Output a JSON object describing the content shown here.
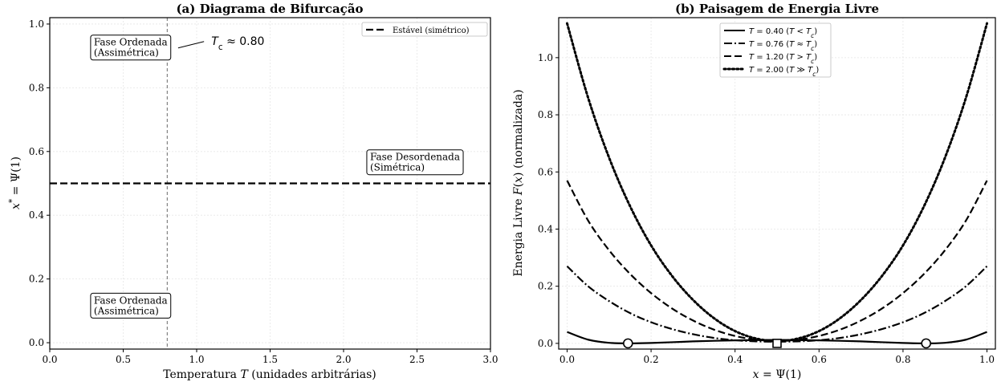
{
  "chart_data": [
    {
      "type": "line",
      "title": "(a) Diagrama de Bifurcação",
      "xlabel": "Temperatura T (unidades arbitrárias)",
      "ylabel": "x* = Ψ(1)",
      "xlim": [
        0,
        3
      ],
      "ylim": [
        -0.02,
        1.02
      ],
      "xticks": [
        "0.0",
        "0.5",
        "1.0",
        "1.5",
        "2.0",
        "2.5",
        "3.0"
      ],
      "yticks": [
        "0.0",
        "0.2",
        "0.4",
        "0.6",
        "0.8",
        "1.0"
      ],
      "grid": true,
      "legend_position": "top-right",
      "series": [
        {
          "name": "Estável (simétrico)",
          "style": "dashed",
          "x": [
            0,
            3
          ],
          "y": [
            0.5,
            0.5
          ]
        }
      ],
      "vline": {
        "x": 0.8,
        "label": "T_c ≈ 0.80"
      },
      "annotations": [
        {
          "line1": "Fase Ordenada",
          "line2": "(Assimétrica)",
          "x": 0.3,
          "y": 0.93
        },
        {
          "line1": "Fase Desordenada",
          "line2": "(Simétrica)",
          "x": 2.18,
          "y": 0.57
        },
        {
          "line1": "Fase Ordenada",
          "line2": "(Assimétrica)",
          "x": 0.3,
          "y": 0.12
        }
      ]
    },
    {
      "type": "line",
      "title": "(b) Paisagem de Energia Livre",
      "xlabel": "x = Ψ(1)",
      "ylabel": "Energia Livre F(x) (normalizada)",
      "xlim": [
        -0.02,
        1.02
      ],
      "ylim": [
        -0.02,
        1.14
      ],
      "xticks": [
        "0.0",
        "0.2",
        "0.4",
        "0.6",
        "0.8",
        "1.0"
      ],
      "yticks": [
        "0.0",
        "0.2",
        "0.4",
        "0.6",
        "0.8",
        "1.0"
      ],
      "grid": true,
      "legend_position": "top-center",
      "series": [
        {
          "name": "T = 0.40 (T < T_c)",
          "style": "solid",
          "x": [
            0.0,
            0.05,
            0.1,
            0.15,
            0.2,
            0.25,
            0.3,
            0.35,
            0.4,
            0.45,
            0.5,
            0.55,
            0.6,
            0.65,
            0.7,
            0.75,
            0.8,
            0.85,
            0.9,
            0.95,
            1.0
          ],
          "y": [
            0.04,
            0.013,
            0.002,
            0.0,
            0.0015,
            0.004,
            0.007,
            0.009,
            0.0105,
            0.0115,
            0.012,
            0.0115,
            0.0105,
            0.009,
            0.007,
            0.004,
            0.0015,
            0.0,
            0.002,
            0.013,
            0.04
          ]
        },
        {
          "name": "T = 0.76 (T ≈ T_c)",
          "style": "dashdot",
          "x": [
            0.0,
            0.05,
            0.1,
            0.15,
            0.2,
            0.25,
            0.3,
            0.35,
            0.4,
            0.45,
            0.5,
            0.55,
            0.6,
            0.65,
            0.7,
            0.75,
            0.8,
            0.85,
            0.9,
            0.95,
            1.0
          ],
          "y": [
            0.27,
            0.2,
            0.148,
            0.106,
            0.074,
            0.05,
            0.032,
            0.019,
            0.011,
            0.007,
            0.006,
            0.007,
            0.011,
            0.019,
            0.032,
            0.05,
            0.074,
            0.106,
            0.148,
            0.2,
            0.27
          ]
        },
        {
          "name": "T = 1.20 (T > T_c)",
          "style": "dashed",
          "x": [
            0.0,
            0.05,
            0.1,
            0.15,
            0.2,
            0.25,
            0.3,
            0.35,
            0.4,
            0.45,
            0.5,
            0.55,
            0.6,
            0.65,
            0.7,
            0.75,
            0.8,
            0.85,
            0.9,
            0.95,
            1.0
          ],
          "y": [
            0.57,
            0.43,
            0.326,
            0.243,
            0.176,
            0.122,
            0.08,
            0.048,
            0.026,
            0.013,
            0.009,
            0.013,
            0.026,
            0.048,
            0.08,
            0.122,
            0.176,
            0.243,
            0.326,
            0.43,
            0.57
          ]
        },
        {
          "name": "T = 2.00 (T ≫ T_c)",
          "style": "dotted",
          "x": [
            0.0,
            0.05,
            0.1,
            0.15,
            0.2,
            0.25,
            0.3,
            0.35,
            0.4,
            0.45,
            0.5,
            0.55,
            0.6,
            0.65,
            0.7,
            0.75,
            0.8,
            0.85,
            0.9,
            0.95,
            1.0
          ],
          "y": [
            1.12,
            0.86,
            0.65,
            0.48,
            0.343,
            0.236,
            0.152,
            0.088,
            0.043,
            0.017,
            0.008,
            0.017,
            0.043,
            0.088,
            0.152,
            0.236,
            0.343,
            0.48,
            0.65,
            0.86,
            1.12
          ]
        }
      ],
      "markers": [
        {
          "shape": "circle",
          "x": 0.145,
          "y": 0.0
        },
        {
          "shape": "circle",
          "x": 0.855,
          "y": 0.0
        },
        {
          "shape": "square",
          "x": 0.5,
          "y": 0.0
        }
      ]
    }
  ]
}
